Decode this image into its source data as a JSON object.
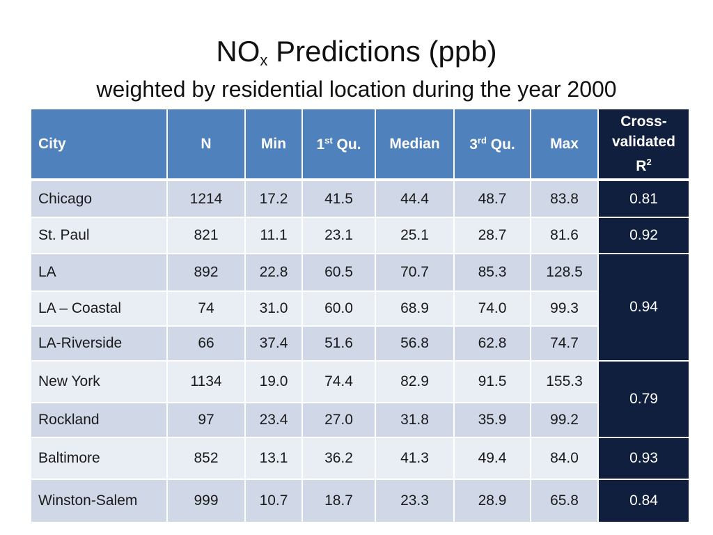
{
  "title": {
    "main": "NO",
    "sub": "x",
    "rest": " Predictions (ppb)"
  },
  "subtitle": "weighted by residential location during the year 2000",
  "table": {
    "headers": {
      "city": "City",
      "n": "N",
      "min": "Min",
      "q1_base": "1",
      "q1_sup": "st",
      "q1_rest": " Qu.",
      "median": "Median",
      "q3_base": "3",
      "q3_sup": "rd",
      "q3_rest": " Qu.",
      "max": "Max",
      "r2_line1": "Cross-",
      "r2_line2": "validated",
      "r2_line3": "R",
      "r2_sup": "2"
    },
    "rows": [
      {
        "city": "Chicago",
        "n": "1214",
        "min": "17.2",
        "q1": "41.5",
        "median": "44.4",
        "q3": "48.7",
        "max": "83.8"
      },
      {
        "city": "St. Paul",
        "n": "821",
        "min": "11.1",
        "q1": "23.1",
        "median": "25.1",
        "q3": "28.7",
        "max": "81.6"
      },
      {
        "city": "LA",
        "n": "892",
        "min": "22.8",
        "q1": "60.5",
        "median": "70.7",
        "q3": "85.3",
        "max": "128.5"
      },
      {
        "city": "LA – Coastal",
        "n": "74",
        "min": "31.0",
        "q1": "60.0",
        "median": "68.9",
        "q3": "74.0",
        "max": "99.3"
      },
      {
        "city": "LA-Riverside",
        "n": "66",
        "min": "37.4",
        "q1": "51.6",
        "median": "56.8",
        "q3": "62.8",
        "max": "74.7"
      },
      {
        "city": "New York",
        "n": "1134",
        "min": "19.0",
        "q1": "74.4",
        "median": "82.9",
        "q3": "91.5",
        "max": "155.3"
      },
      {
        "city": "Rockland",
        "n": "97",
        "min": "23.4",
        "q1": "27.0",
        "median": "31.8",
        "q3": "35.9",
        "max": "99.2"
      },
      {
        "city": "Baltimore",
        "n": "852",
        "min": "13.1",
        "q1": "36.2",
        "median": "41.3",
        "q3": "49.4",
        "max": "84.0"
      },
      {
        "city": "Winston-Salem",
        "n": "999",
        "min": "10.7",
        "q1": "18.7",
        "median": "23.3",
        "q3": "28.9",
        "max": "65.8"
      }
    ],
    "r2_groups": [
      {
        "value": "0.81",
        "cities": [
          "Chicago"
        ]
      },
      {
        "value": "0.92",
        "cities": [
          "St. Paul"
        ]
      },
      {
        "value": "0.94",
        "cities": [
          "LA",
          "LA – Coastal",
          "LA-Riverside"
        ]
      },
      {
        "value": "0.79",
        "cities": [
          "New York",
          "Rockland"
        ]
      },
      {
        "value": "0.93",
        "cities": [
          "Baltimore"
        ]
      },
      {
        "value": "0.84",
        "cities": [
          "Winston-Salem"
        ]
      }
    ]
  },
  "colors": {
    "header_bg": "#4f81bd",
    "r2_bg": "#0f1f3d",
    "row_odd": "#d0d8e8",
    "row_even": "#e9edf4"
  }
}
